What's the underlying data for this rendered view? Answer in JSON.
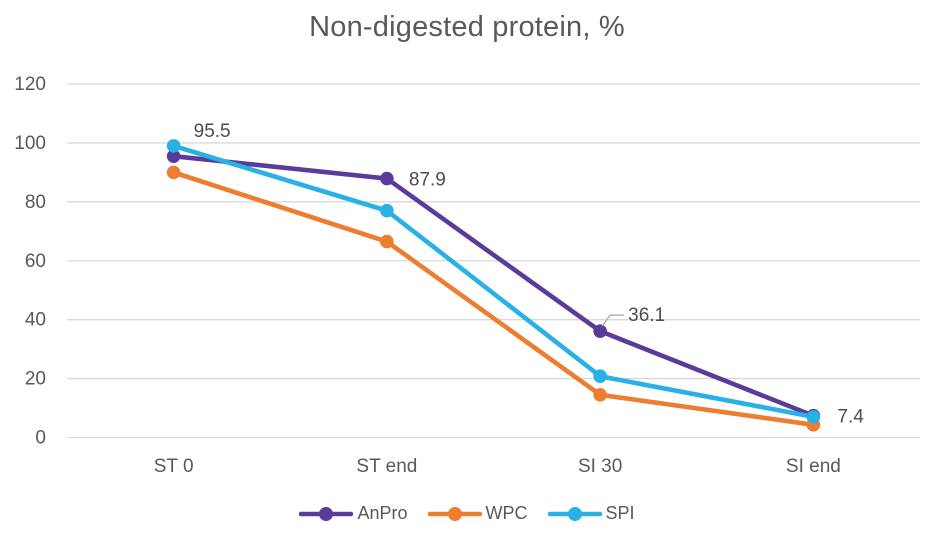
{
  "chart_data": {
    "type": "line",
    "title": "Non-digested protein, %",
    "categories": [
      "ST 0",
      "ST end",
      "SI 30",
      "SI end"
    ],
    "series": [
      {
        "name": "AnPro",
        "color": "#5B3B99",
        "values": [
          95.5,
          87.9,
          36.1,
          7.4
        ]
      },
      {
        "name": "WPC",
        "color": "#ED7D31",
        "values": [
          90,
          66.5,
          14.5,
          4.3
        ]
      },
      {
        "name": "SPI",
        "color": "#29B0E4",
        "values": [
          99,
          77,
          20.8,
          7
        ]
      }
    ],
    "data_labels": {
      "series": "AnPro",
      "values": [
        "95.5",
        "87.9",
        "36.1",
        "7.4"
      ]
    },
    "y_axis": {
      "min": 0,
      "max": 120,
      "step": 20,
      "tick_labels": [
        "0",
        "20",
        "40",
        "60",
        "80",
        "100",
        "120"
      ]
    },
    "x_axis": {
      "tick_labels": [
        "ST 0",
        "ST end",
        "SI 30",
        "SI end"
      ]
    },
    "grid": "horizontal",
    "legend_position": "bottom",
    "legend_entries": [
      "AnPro",
      "WPC",
      "SPI"
    ],
    "colors": {
      "gridline": "#D9D9D9",
      "axis_text": "#595959",
      "title_text": "#595959",
      "data_label_text": "#4D4D4D",
      "leader_line": "#A6A6A6"
    }
  }
}
